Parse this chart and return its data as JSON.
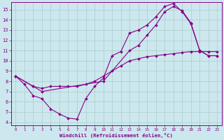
{
  "xlabel": "Windchill (Refroidissement éolien,°C)",
  "bg_color": "#cce8ee",
  "grid_color": "#aacccc",
  "line_color": "#880088",
  "xlim": [
    -0.5,
    23.5
  ],
  "ylim": [
    3.7,
    15.7
  ],
  "xticks": [
    0,
    1,
    2,
    3,
    4,
    5,
    6,
    7,
    8,
    9,
    10,
    11,
    12,
    13,
    14,
    15,
    16,
    17,
    18,
    19,
    20,
    21,
    22,
    23
  ],
  "yticks": [
    4,
    5,
    6,
    7,
    8,
    9,
    10,
    11,
    12,
    13,
    14,
    15
  ],
  "curve1_x": [
    0,
    1,
    2,
    3,
    4,
    5,
    6,
    7,
    8,
    9,
    10,
    11,
    12,
    13,
    14,
    15,
    16,
    17,
    18,
    19,
    20,
    21,
    22,
    23
  ],
  "curve1_y": [
    8.5,
    7.7,
    6.6,
    6.3,
    5.3,
    4.8,
    4.4,
    4.3,
    6.3,
    7.5,
    8.3,
    10.5,
    10.9,
    12.7,
    13.0,
    13.5,
    14.3,
    15.3,
    15.6,
    14.8,
    13.6,
    11.0,
    10.5,
    10.5
  ],
  "curve2_x": [
    0,
    2,
    3,
    4,
    5,
    6,
    7,
    8,
    9,
    10,
    11,
    12,
    13,
    14,
    15,
    16,
    17,
    18,
    19,
    20,
    21,
    22,
    23
  ],
  "curve2_y": [
    8.5,
    7.5,
    7.3,
    7.5,
    7.5,
    7.5,
    7.5,
    7.7,
    8.0,
    8.5,
    9.0,
    9.5,
    10.0,
    10.2,
    10.4,
    10.5,
    10.6,
    10.7,
    10.8,
    10.9,
    10.9,
    10.9,
    10.9
  ],
  "curve3_x": [
    0,
    2,
    3,
    10,
    13,
    14,
    15,
    16,
    17,
    18,
    19,
    20,
    21,
    22,
    23
  ],
  "curve3_y": [
    8.5,
    7.5,
    7.0,
    8.0,
    11.0,
    11.5,
    12.5,
    13.5,
    14.8,
    15.3,
    14.9,
    13.7,
    11.0,
    10.5,
    10.5
  ]
}
